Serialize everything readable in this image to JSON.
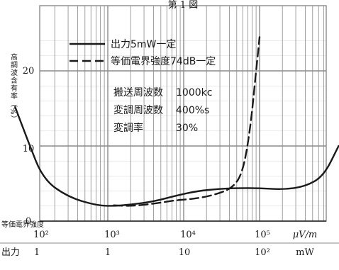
{
  "chart_data": {
    "type": "line",
    "title": "第 1 図",
    "ylabel": "高調波含有率（%）",
    "ylim": [
      0,
      25
    ],
    "y_ticks": [
      "20",
      "10",
      "0"
    ],
    "x_scale": "log",
    "x_axis_field": {
      "label": "等価電界強度",
      "unit": "μV/m",
      "ticks": [
        "10²",
        "10³",
        "10⁴",
        "10⁵"
      ]
    },
    "x_axis_output": {
      "label": "出力",
      "unit": "mW",
      "ticks": [
        "1",
        "1",
        "10",
        "10²"
      ]
    },
    "series": [
      {
        "name": "出力5mW一定",
        "style": "solid",
        "points": [
          [
            0.06,
            15.2
          ],
          [
            0.09,
            10.5
          ],
          [
            0.14,
            5.6
          ],
          [
            0.3,
            3.2
          ],
          [
            0.7,
            2.1
          ],
          [
            1.2,
            2.0
          ],
          [
            2.0,
            2.2
          ],
          [
            4.0,
            2.6
          ],
          [
            8,
            3.4
          ],
          [
            15,
            4.0
          ],
          [
            30,
            4.3
          ],
          [
            50,
            4.4
          ],
          [
            100,
            4.4
          ],
          [
            200,
            4.2
          ],
          [
            400,
            4.6
          ],
          [
            700,
            6.0
          ],
          [
            1100,
            10.0
          ]
        ]
      },
      {
        "name": "等価電界強度74dB一定",
        "style": "dashed",
        "points": [
          [
            1.2,
            2.1
          ],
          [
            2,
            2.0
          ],
          [
            4,
            2.3
          ],
          [
            8,
            2.8
          ],
          [
            15,
            3.0
          ],
          [
            28,
            3.6
          ],
          [
            45,
            4.5
          ],
          [
            60,
            6.5
          ],
          [
            75,
            12.0
          ],
          [
            90,
            20.0
          ],
          [
            100,
            24.5
          ]
        ]
      }
    ],
    "legend": {
      "placement": "top-center"
    },
    "parameters": [
      {
        "label": "搬送周波数",
        "value": "1000kc"
      },
      {
        "label": "変調周波数",
        "value": "400%s"
      },
      {
        "label": "変調率",
        "value": "30%"
      }
    ],
    "grid": true,
    "colors": {
      "line": "#1a1a1a",
      "grid": "#8a8a8a",
      "background": "#ffffff"
    }
  }
}
